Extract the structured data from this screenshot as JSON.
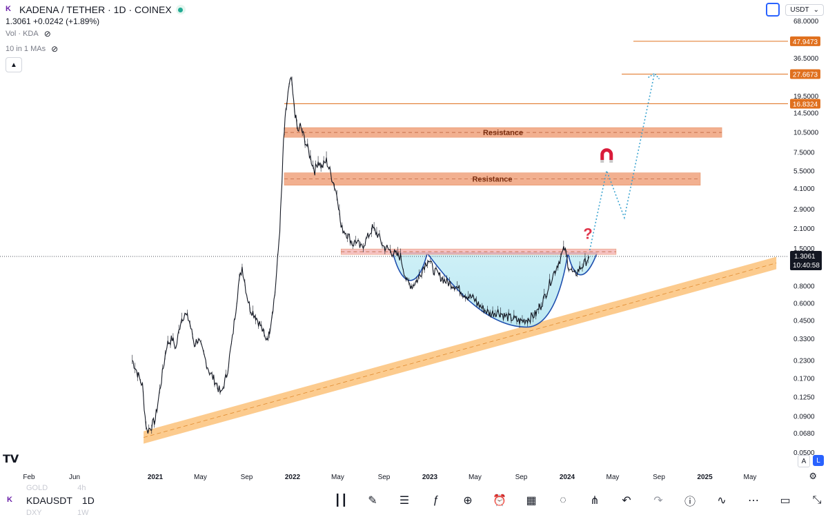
{
  "header": {
    "title": "KADENA / TETHER · 1D · COINEX",
    "price_line": "1.3061  +0.0242 (+1.89%)",
    "vol_label": "Vol · KDA",
    "ma_label": "10 in 1 MAs",
    "currency": "USDT"
  },
  "bottom_bar": {
    "symbol": "KDAUSDT",
    "interval": "1D",
    "ghost_prev": "GOLD",
    "ghost_prev_interval": "4h",
    "ghost_next": "DXY",
    "ghost_next_interval": "1W",
    "tools": [
      "candles-icon",
      "pen-icon",
      "note-icon",
      "fx-icon",
      "plus-circle-icon",
      "alarm-icon",
      "layout-icon",
      "bulb-icon",
      "share-icon",
      "undo-icon",
      "redo-icon",
      "info-icon",
      "wave-icon",
      "more-icon",
      "window-icon",
      "compress-icon"
    ]
  },
  "axis_buttons": {
    "auto": "A",
    "log": "L"
  },
  "chart_data": {
    "type": "line",
    "scale": "log",
    "title": "",
    "xlabel": "",
    "ylabel": "",
    "x_ticks": [
      "Feb",
      "Jun",
      "2021",
      "May",
      "Sep",
      "2022",
      "May",
      "Sep",
      "2023",
      "May",
      "Sep",
      "2024",
      "May",
      "Sep",
      "2025",
      "May"
    ],
    "y_ticks": [
      "68.0000",
      "36.5000",
      "19.5000",
      "14.5000",
      "10.5000",
      "7.5000",
      "5.5000",
      "4.1000",
      "2.9000",
      "2.1000",
      "1.5000",
      "0.8000",
      "0.6000",
      "0.4500",
      "0.3300",
      "0.2300",
      "0.1700",
      "0.1250",
      "0.0900",
      "0.0680",
      "0.0500"
    ],
    "price_labels": [
      {
        "value": "47.9473",
        "kind": "level"
      },
      {
        "value": "27.6673",
        "kind": "level"
      },
      {
        "value": "16.8324",
        "kind": "level"
      },
      {
        "value": "1.3061",
        "kind": "last"
      },
      {
        "value": "10:40:58",
        "kind": "countdown"
      }
    ],
    "series": [
      {
        "values": [
          [
            "2020-11-01",
            0.23
          ],
          [
            "2020-11-10",
            0.2
          ],
          [
            "2020-11-20",
            0.17
          ],
          [
            "2020-11-28",
            0.15
          ],
          [
            "2020-12-05",
            0.09
          ],
          [
            "2020-12-10",
            0.07
          ],
          [
            "2020-12-20",
            0.075
          ],
          [
            "2021-01-01",
            0.085
          ],
          [
            "2021-01-15",
            0.15
          ],
          [
            "2021-02-01",
            0.3
          ],
          [
            "2021-02-15",
            0.33
          ],
          [
            "2021-02-25",
            0.28
          ],
          [
            "2021-03-10",
            0.45
          ],
          [
            "2021-03-20",
            0.5
          ],
          [
            "2021-04-01",
            0.45
          ],
          [
            "2021-04-15",
            0.3
          ],
          [
            "2021-04-25",
            0.33
          ],
          [
            "2021-05-10",
            0.25
          ],
          [
            "2021-05-25",
            0.19
          ],
          [
            "2021-06-10",
            0.16
          ],
          [
            "2021-06-25",
            0.13
          ],
          [
            "2021-07-10",
            0.18
          ],
          [
            "2021-07-25",
            0.33
          ],
          [
            "2021-08-10",
            0.8
          ],
          [
            "2021-08-20",
            1.1
          ],
          [
            "2021-09-01",
            0.7
          ],
          [
            "2021-09-10",
            0.55
          ],
          [
            "2021-09-25",
            0.48
          ],
          [
            "2021-10-10",
            0.4
          ],
          [
            "2021-10-20",
            0.33
          ],
          [
            "2021-10-30",
            0.35
          ],
          [
            "2021-11-05",
            0.45
          ],
          [
            "2021-11-15",
            0.7
          ],
          [
            "2021-11-22",
            1.2
          ],
          [
            "2021-11-28",
            2.1
          ],
          [
            "2021-12-04",
            4.5
          ],
          [
            "2021-12-08",
            9.0
          ],
          [
            "2021-12-14",
            14.5
          ],
          [
            "2021-12-20",
            20.0
          ],
          [
            "2021-12-28",
            26.0
          ],
          [
            "2022-01-04",
            17.0
          ],
          [
            "2022-01-10",
            13.0
          ],
          [
            "2022-01-15",
            10.5
          ],
          [
            "2022-01-22",
            11.5
          ],
          [
            "2022-02-01",
            9.5
          ],
          [
            "2022-02-10",
            8.0
          ],
          [
            "2022-02-20",
            6.5
          ],
          [
            "2022-03-01",
            5.5
          ],
          [
            "2022-03-10",
            6.5
          ],
          [
            "2022-03-20",
            5.8
          ],
          [
            "2022-04-01",
            6.5
          ],
          [
            "2022-04-10",
            5.5
          ],
          [
            "2022-04-20",
            4.5
          ],
          [
            "2022-05-01",
            3.5
          ],
          [
            "2022-05-10",
            2.1
          ],
          [
            "2022-05-20",
            2.0
          ],
          [
            "2022-06-01",
            1.8
          ],
          [
            "2022-06-10",
            1.6
          ],
          [
            "2022-06-20",
            1.7
          ],
          [
            "2022-07-01",
            1.5
          ],
          [
            "2022-07-15",
            1.7
          ],
          [
            "2022-08-01",
            2.1
          ],
          [
            "2022-08-15",
            1.9
          ],
          [
            "2022-08-30",
            1.55
          ],
          [
            "2022-09-15",
            1.45
          ],
          [
            "2022-10-01",
            1.35
          ],
          [
            "2022-10-15",
            1.3
          ],
          [
            "2022-11-01",
            0.85
          ],
          [
            "2022-11-15",
            0.8
          ],
          [
            "2022-12-01",
            0.9
          ],
          [
            "2022-12-15",
            1.1
          ],
          [
            "2022-12-28",
            1.25
          ],
          [
            "2023-01-10",
            1.05
          ],
          [
            "2023-01-25",
            0.95
          ],
          [
            "2023-02-15",
            0.85
          ],
          [
            "2023-03-10",
            0.8
          ],
          [
            "2023-04-01",
            0.7
          ],
          [
            "2023-04-25",
            0.65
          ],
          [
            "2023-05-20",
            0.55
          ],
          [
            "2023-06-10",
            0.5
          ],
          [
            "2023-07-01",
            0.52
          ],
          [
            "2023-07-20",
            0.48
          ],
          [
            "2023-08-10",
            0.46
          ],
          [
            "2023-08-30",
            0.44
          ],
          [
            "2023-09-20",
            0.46
          ],
          [
            "2023-10-10",
            0.5
          ],
          [
            "2023-11-01",
            0.65
          ],
          [
            "2023-11-20",
            0.9
          ],
          [
            "2023-12-10",
            1.2
          ],
          [
            "2023-12-25",
            1.5
          ],
          [
            "2024-01-05",
            1.1
          ],
          [
            "2024-01-20",
            0.95
          ],
          [
            "2024-02-01",
            1.05
          ],
          [
            "2024-02-15",
            1.15
          ],
          [
            "2024-02-28",
            1.3061
          ]
        ]
      }
    ],
    "annotations": [
      {
        "type": "zone",
        "label": "Resistance",
        "low": 9.6,
        "high": 11.3,
        "from": "2021-12-10",
        "to": "2025-02-15",
        "color": "#f0a27c"
      },
      {
        "type": "zone",
        "label": "Resistance",
        "low": 4.3,
        "high": 5.3,
        "from": "2021-12-10",
        "to": "2024-12-20",
        "color": "#f0a27c"
      },
      {
        "type": "zone",
        "label": "",
        "low": 1.35,
        "high": 1.48,
        "from": "2022-05-10",
        "to": "2024-05-10",
        "color": "#f4b7b7"
      },
      {
        "type": "level",
        "value": 47.9473,
        "from": "2024-06-25"
      },
      {
        "type": "level",
        "value": 27.6673,
        "from": "2024-05-25"
      },
      {
        "type": "level",
        "value": 16.8324,
        "from": "2021-12-10"
      },
      {
        "type": "trend_channel",
        "from": [
          "2020-12-01",
          0.063
        ],
        "to": [
          "2025-07-10",
          1.17
        ],
        "color": "#fbc27a"
      },
      {
        "type": "cup_and_handle",
        "color": "#35c5df"
      },
      {
        "type": "projection",
        "points": [
          [
            "2024-03-01",
            1.45
          ],
          [
            "2024-04-15",
            5.5
          ],
          [
            "2024-06-01",
            2.5
          ],
          [
            "2024-08-20",
            28
          ]
        ],
        "color": "#3aa3d0"
      },
      {
        "type": "icon",
        "name": "magnet-icon",
        "at": [
          "2024-04-15",
          7.2
        ]
      },
      {
        "type": "icon",
        "name": "question-icon",
        "at": [
          "2024-02-25",
          1.75
        ]
      }
    ],
    "grid": false,
    "legend": "none"
  }
}
